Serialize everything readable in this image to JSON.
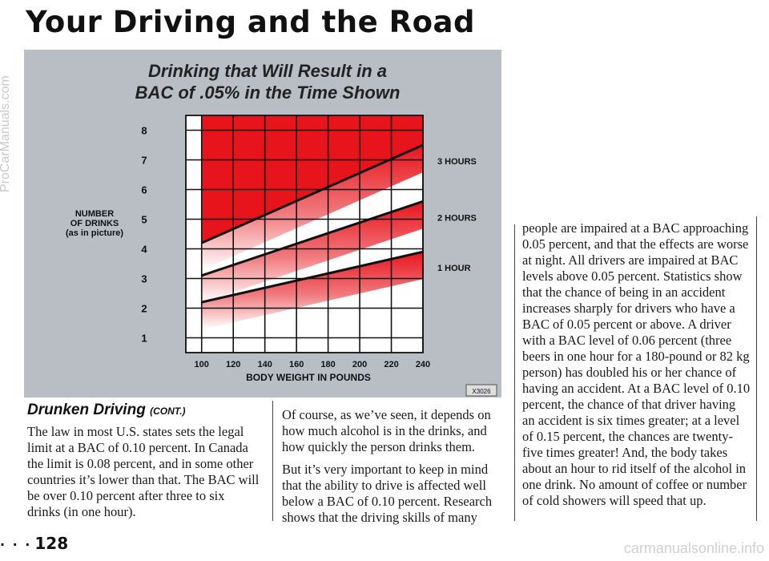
{
  "page": {
    "header": "Your Driving and the Road",
    "side_watermark": "ProCarManuals.com",
    "footer_watermark": "carmanualsonline.info",
    "page_number": "128",
    "page_dots": "· · ·"
  },
  "chart_data": {
    "type": "area",
    "title": "Drinking that Will Result in a",
    "subtitle": "BAC of .05% in the Time Shown",
    "ylabel_lines": [
      "NUMBER",
      "OF DRINKS",
      "(as in picture)"
    ],
    "xlabel": "BODY WEIGHT IN POUNDS",
    "figure_code": "X3026",
    "xlim": [
      90,
      240
    ],
    "ylim": [
      0.5,
      8.5
    ],
    "x_ticks": [
      100,
      120,
      140,
      160,
      180,
      200,
      220,
      240
    ],
    "y_ticks": [
      1,
      2,
      3,
      4,
      5,
      6,
      7,
      8
    ],
    "grid": true,
    "series": [
      {
        "name": "3 HOURS",
        "x": [
          100,
          240
        ],
        "y": [
          4.2,
          7.5
        ]
      },
      {
        "name": "2 HOURS",
        "x": [
          100,
          240
        ],
        "y": [
          3.1,
          5.6
        ]
      },
      {
        "name": "1 HOUR",
        "x": [
          100,
          240
        ],
        "y": [
          2.2,
          3.9
        ]
      }
    ]
  },
  "text": {
    "subhead": "Drunken Driving",
    "subhead_cont": "(CONT.)",
    "col1_p1": "The law in most U.S. states sets the legal limit at a BAC of 0.10 percent. In Canada the limit is 0.08 percent, and in some other countries it’s lower than that. The BAC will be over 0.10 percent after three to six drinks (in one hour).",
    "col2_p1": "Of course, as we’ve seen, it depends on how much alcohol is in the drinks, and how quickly the person drinks them.",
    "col2_p2": "But it’s very important to keep in mind that the ability to drive is affected well below a BAC of 0.10 percent. Research shows that the driving skills of many",
    "col3_p1": "people are impaired at a BAC approaching 0.05 percent, and that the effects are worse at night. All drivers are impaired at BAC levels above 0.05 percent. Statistics show that the chance of being in an accident increases sharply for drivers who have a BAC of 0.05 percent or above. A driver with a BAC level of 0.06 percent (three beers in one hour for a 180-pound or 82 kg person) has doubled his or her chance of having an accident. At a BAC level of 0.10 percent, the chance of that driver having an accident is six times greater; at a level of 0.15 percent, the chances are twenty-five times greater! And, the body takes about an hour to rid itself of the alcohol in one drink. No amount of coffee or number of cold showers will speed that up."
  }
}
